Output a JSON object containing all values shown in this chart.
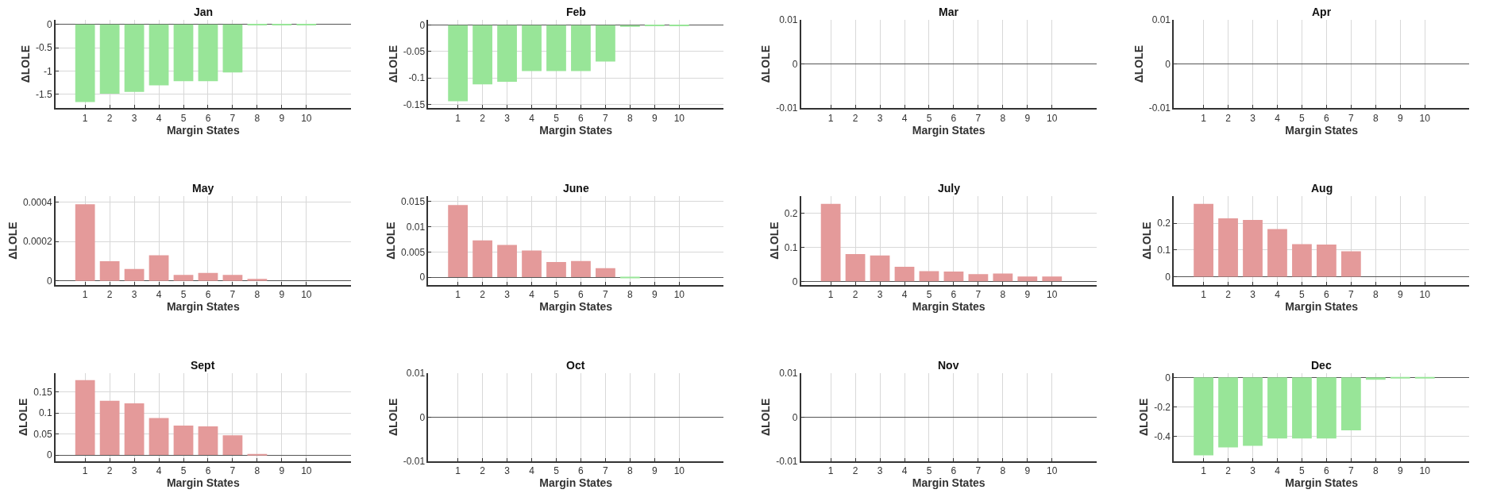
{
  "chart_data": [
    {
      "type": "bar",
      "title": "Jan",
      "xlabel": "Margin States",
      "ylabel": "ΔLOLE",
      "categories": [
        "1",
        "2",
        "3",
        "4",
        "5",
        "6",
        "7",
        "8",
        "9",
        "10"
      ],
      "values": [
        -1.67,
        -1.49,
        -1.45,
        -1.31,
        -1.22,
        -1.22,
        -1.03,
        -0.01,
        -0.005,
        -0.005
      ],
      "color": "#98e598",
      "ylim": [
        -1.8,
        0.1
      ],
      "yticks": [
        -1.5,
        -1,
        -0.5,
        0
      ],
      "grid": true
    },
    {
      "type": "bar",
      "title": "Feb",
      "xlabel": "Margin States",
      "ylabel": "ΔLOLE",
      "categories": [
        "1",
        "2",
        "3",
        "4",
        "5",
        "6",
        "7",
        "8",
        "9",
        "10"
      ],
      "values": [
        -0.144,
        -0.112,
        -0.107,
        -0.087,
        -0.087,
        -0.087,
        -0.069,
        -0.003,
        -0.001,
        -0.001
      ],
      "color": "#98e598",
      "ylim": [
        -0.157,
        0.01
      ],
      "yticks": [
        -0.15,
        -0.1,
        -0.05,
        0
      ],
      "grid": true
    },
    {
      "type": "bar",
      "title": "Mar",
      "xlabel": "Margin States",
      "ylabel": "ΔLOLE",
      "categories": [
        "1",
        "2",
        "3",
        "4",
        "5",
        "6",
        "7",
        "8",
        "9",
        "10"
      ],
      "values": [
        0,
        0,
        0,
        0,
        0,
        0,
        0,
        0,
        0,
        0
      ],
      "color": "#98e598",
      "ylim": [
        -0.01,
        0.01
      ],
      "yticks": [
        -0.01,
        0,
        0.01
      ],
      "grid": true
    },
    {
      "type": "bar",
      "title": "Apr",
      "xlabel": "Margin States",
      "ylabel": "ΔLOLE",
      "categories": [
        "1",
        "2",
        "3",
        "4",
        "5",
        "6",
        "7",
        "8",
        "9",
        "10"
      ],
      "values": [
        0,
        0,
        0,
        0,
        0,
        0,
        0,
        0,
        0,
        0
      ],
      "color": "#98e598",
      "ylim": [
        -0.01,
        0.01
      ],
      "yticks": [
        -0.01,
        0,
        0.01
      ],
      "grid": true
    },
    {
      "type": "bar",
      "title": "May",
      "xlabel": "Margin States",
      "ylabel": "ΔLOLE",
      "categories": [
        "1",
        "2",
        "3",
        "4",
        "5",
        "6",
        "7",
        "8",
        "9",
        "10"
      ],
      "values": [
        0.00039,
        0.0001,
        6e-05,
        0.00013,
        3e-05,
        4e-05,
        3e-05,
        1e-05,
        0,
        0
      ],
      "color": "#e49a9a",
      "ylim": [
        -2e-05,
        0.00043
      ],
      "yticks": [
        0,
        0.0002,
        0.0004
      ],
      "grid": true
    },
    {
      "type": "bar",
      "title": "June",
      "xlabel": "Margin States",
      "ylabel": "ΔLOLE",
      "categories": [
        "1",
        "2",
        "3",
        "4",
        "5",
        "6",
        "7",
        "8",
        "9",
        "10"
      ],
      "values": [
        0.0143,
        0.0073,
        0.0064,
        0.0053,
        0.003,
        0.0032,
        0.0018,
        -0.0001,
        0,
        0
      ],
      "colors": [
        "#e49a9a",
        "#e49a9a",
        "#e49a9a",
        "#e49a9a",
        "#e49a9a",
        "#e49a9a",
        "#e49a9a",
        "#98e598",
        "#e49a9a",
        "#e49a9a"
      ],
      "ylim": [
        -0.0015,
        0.016
      ],
      "yticks": [
        0,
        0.005,
        0.01,
        0.015
      ],
      "grid": true
    },
    {
      "type": "bar",
      "title": "July",
      "xlabel": "Margin States",
      "ylabel": "ΔLOLE",
      "categories": [
        "1",
        "2",
        "3",
        "4",
        "5",
        "6",
        "7",
        "8",
        "9",
        "10"
      ],
      "values": [
        0.228,
        0.08,
        0.076,
        0.043,
        0.03,
        0.029,
        0.021,
        0.023,
        0.014,
        0.014
      ],
      "color": "#e49a9a",
      "ylim": [
        -0.01,
        0.25
      ],
      "yticks": [
        0,
        0.1,
        0.2
      ],
      "grid": true
    },
    {
      "type": "bar",
      "title": "Aug",
      "xlabel": "Margin States",
      "ylabel": "ΔLOLE",
      "categories": [
        "1",
        "2",
        "3",
        "4",
        "5",
        "6",
        "7",
        "8",
        "9",
        "10"
      ],
      "values": [
        0.272,
        0.218,
        0.212,
        0.178,
        0.122,
        0.12,
        0.095,
        0,
        0,
        0
      ],
      "color": "#e49a9a",
      "ylim": [
        -0.03,
        0.3
      ],
      "yticks": [
        0,
        0.1,
        0.2
      ],
      "grid": true
    },
    {
      "type": "bar",
      "title": "Sept",
      "xlabel": "Margin States",
      "ylabel": "ΔLOLE",
      "categories": [
        "1",
        "2",
        "3",
        "4",
        "5",
        "6",
        "7",
        "8",
        "9",
        "10"
      ],
      "values": [
        0.178,
        0.129,
        0.123,
        0.088,
        0.07,
        0.068,
        0.047,
        0.002,
        0,
        0
      ],
      "color": "#e49a9a",
      "ylim": [
        -0.015,
        0.195
      ],
      "yticks": [
        0,
        0.05,
        0.1,
        0.15
      ],
      "grid": true
    },
    {
      "type": "bar",
      "title": "Oct",
      "xlabel": "Margin States",
      "ylabel": "ΔLOLE",
      "categories": [
        "1",
        "2",
        "3",
        "4",
        "5",
        "6",
        "7",
        "8",
        "9",
        "10"
      ],
      "values": [
        0,
        0,
        0,
        0,
        0,
        0,
        0,
        0,
        0,
        0
      ],
      "color": "#98e598",
      "ylim": [
        -0.01,
        0.01
      ],
      "yticks": [
        -0.01,
        0,
        0.01
      ],
      "grid": true
    },
    {
      "type": "bar",
      "title": "Nov",
      "xlabel": "Margin States",
      "ylabel": "ΔLOLE",
      "categories": [
        "1",
        "2",
        "3",
        "4",
        "5",
        "6",
        "7",
        "8",
        "9",
        "10"
      ],
      "values": [
        0,
        0,
        0,
        0,
        0,
        0,
        0,
        0,
        0,
        0
      ],
      "color": "#98e598",
      "ylim": [
        -0.01,
        0.01
      ],
      "yticks": [
        -0.01,
        0,
        0.01
      ],
      "grid": true
    },
    {
      "type": "bar",
      "title": "Dec",
      "xlabel": "Margin States",
      "ylabel": "ΔLOLE",
      "categories": [
        "1",
        "2",
        "3",
        "4",
        "5",
        "6",
        "7",
        "8",
        "9",
        "10"
      ],
      "values": [
        -0.53,
        -0.475,
        -0.465,
        -0.415,
        -0.415,
        -0.415,
        -0.36,
        -0.015,
        -0.004,
        -0.003
      ],
      "color": "#98e598",
      "ylim": [
        -0.57,
        0.03
      ],
      "yticks": [
        -0.4,
        -0.2,
        0
      ],
      "grid": true
    }
  ]
}
